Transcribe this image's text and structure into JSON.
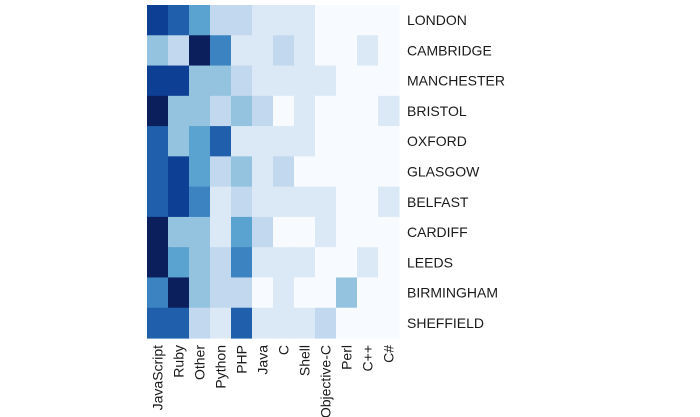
{
  "chart_data": {
    "type": "heatmap",
    "title": "",
    "xlabel": "",
    "ylabel": "",
    "rows": [
      "LONDON",
      "CAMBRIDGE",
      "MANCHESTER",
      "BRISTOL",
      "OXFORD",
      "GLASGOW",
      "BELFAST",
      "CARDIFF",
      "LEEDS",
      "BIRMINGHAM",
      "SHEFFIELD"
    ],
    "columns": [
      "JavaScript",
      "Ruby",
      "Other",
      "Python",
      "PHP",
      "Java",
      "C",
      "Shell",
      "Objective-C",
      "Perl",
      "C++",
      "C#"
    ],
    "values": [
      [
        7,
        6,
        4,
        2,
        2,
        1,
        1,
        1,
        0,
        0,
        0,
        0
      ],
      [
        3,
        2,
        8,
        5,
        1,
        1,
        2,
        1,
        0,
        0,
        1,
        0
      ],
      [
        7,
        7,
        3,
        3,
        2,
        1,
        1,
        1,
        1,
        0,
        0,
        0
      ],
      [
        8,
        3,
        3,
        2,
        3,
        2,
        0,
        1,
        0,
        0,
        0,
        1
      ],
      [
        6,
        3,
        4,
        6,
        1,
        1,
        1,
        1,
        0,
        0,
        0,
        0
      ],
      [
        6,
        7,
        4,
        2,
        3,
        1,
        2,
        0,
        0,
        0,
        0,
        0
      ],
      [
        6,
        7,
        5,
        1,
        2,
        1,
        1,
        1,
        1,
        0,
        0,
        1
      ],
      [
        8,
        3,
        3,
        1,
        4,
        2,
        0,
        0,
        1,
        0,
        0,
        0
      ],
      [
        8,
        4,
        3,
        2,
        5,
        1,
        1,
        1,
        0,
        0,
        1,
        0
      ],
      [
        5,
        8,
        3,
        2,
        2,
        0,
        1,
        0,
        0,
        3,
        0,
        0
      ],
      [
        6,
        6,
        2,
        1,
        6,
        1,
        1,
        1,
        2,
        0,
        0,
        0
      ]
    ],
    "scale_max": 8,
    "colors": [
      "#f7fbff",
      "#dbe9f6",
      "#c2d8ee",
      "#93c3df",
      "#5aa2cf",
      "#3b83c1",
      "#1f5fac",
      "#0d3f94",
      "#0a1f5c"
    ],
    "legend": "none",
    "grid": false
  }
}
